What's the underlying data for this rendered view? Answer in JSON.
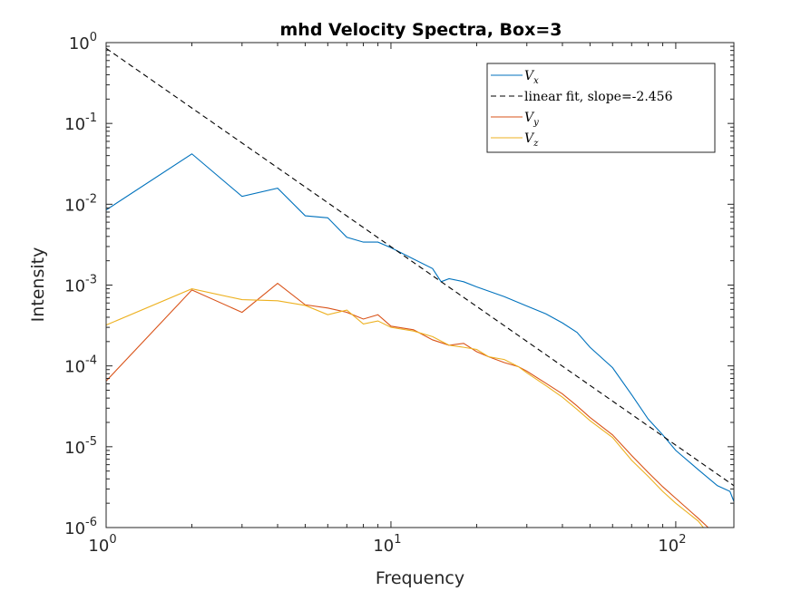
{
  "chart_data": {
    "type": "line",
    "title": "mhd Velocity Spectra, Box=3",
    "xlabel": "Frequency",
    "ylabel": "Intensity",
    "xscale": "log",
    "yscale": "log",
    "xlim": [
      1,
      160
    ],
    "ylim": [
      1e-06,
      1
    ],
    "xticks": [
      1,
      10,
      100
    ],
    "yticks": [
      1e-06,
      1e-05,
      0.0001,
      0.001,
      0.01,
      0.1,
      1
    ],
    "grid": false,
    "legend_position": "top-right",
    "series": [
      {
        "name": "Vx",
        "legend_label": {
          "base": "V",
          "sub": "x"
        },
        "color": "#0072BD",
        "style": "solid",
        "points": [
          [
            1,
            0.0085
          ],
          [
            2,
            0.042
          ],
          [
            3,
            0.0125
          ],
          [
            4,
            0.0158
          ],
          [
            5,
            0.0072
          ],
          [
            6,
            0.0068
          ],
          [
            7,
            0.0039
          ],
          [
            8,
            0.0034
          ],
          [
            9,
            0.0034
          ],
          [
            10,
            0.0029
          ],
          [
            12,
            0.0021
          ],
          [
            14,
            0.0016
          ],
          [
            15,
            0.0011
          ],
          [
            16,
            0.0012
          ],
          [
            18,
            0.0011
          ],
          [
            20,
            0.00095
          ],
          [
            25,
            0.00072
          ],
          [
            30,
            0.00055
          ],
          [
            35,
            0.00044
          ],
          [
            40,
            0.00034
          ],
          [
            45,
            0.00026
          ],
          [
            50,
            0.00017
          ],
          [
            60,
            9.5e-05
          ],
          [
            70,
            4.4e-05
          ],
          [
            80,
            2.2e-05
          ],
          [
            90,
            1.4e-05
          ],
          [
            100,
            9e-06
          ],
          [
            120,
            5.2e-06
          ],
          [
            140,
            3.3e-06
          ],
          [
            155,
            2.8e-06
          ],
          [
            160,
            2.1e-06
          ]
        ]
      },
      {
        "name": "linear fit, slope=-2.456",
        "legend_label": {
          "base": "linear fit, slope=-2.456",
          "sub": ""
        },
        "color": "#000000",
        "style": "dashed",
        "points": [
          [
            1,
            0.85
          ],
          [
            160,
            3.3e-06
          ]
        ]
      },
      {
        "name": "Vy",
        "legend_label": {
          "base": "V",
          "sub": "y"
        },
        "color": "#D95319",
        "style": "solid",
        "points": [
          [
            1,
            6.5e-05
          ],
          [
            2,
            0.00087
          ],
          [
            3,
            0.00046
          ],
          [
            4,
            0.00105
          ],
          [
            5,
            0.00057
          ],
          [
            6,
            0.00052
          ],
          [
            7,
            0.00046
          ],
          [
            8,
            0.00038
          ],
          [
            9,
            0.00043
          ],
          [
            10,
            0.00031
          ],
          [
            12,
            0.00028
          ],
          [
            14,
            0.00021
          ],
          [
            16,
            0.00018
          ],
          [
            18,
            0.00019
          ],
          [
            20,
            0.00015
          ],
          [
            22,
            0.00013
          ],
          [
            25,
            0.00011
          ],
          [
            28,
            9.8e-05
          ],
          [
            30,
            8.6e-05
          ],
          [
            35,
            6.1e-05
          ],
          [
            40,
            4.5e-05
          ],
          [
            45,
            3.2e-05
          ],
          [
            50,
            2.3e-05
          ],
          [
            60,
            1.4e-05
          ],
          [
            70,
            7.8e-06
          ],
          [
            80,
            4.8e-06
          ],
          [
            90,
            3.2e-06
          ],
          [
            100,
            2.3e-06
          ],
          [
            120,
            1.3e-06
          ],
          [
            130,
            1e-06
          ]
        ]
      },
      {
        "name": "Vz",
        "legend_label": {
          "base": "V",
          "sub": "z"
        },
        "color": "#EDB120",
        "style": "solid",
        "points": [
          [
            1,
            0.00032
          ],
          [
            2,
            0.0009
          ],
          [
            3,
            0.00066
          ],
          [
            4,
            0.00064
          ],
          [
            5,
            0.00056
          ],
          [
            6,
            0.00043
          ],
          [
            7,
            0.00049
          ],
          [
            8,
            0.00033
          ],
          [
            9,
            0.00036
          ],
          [
            10,
            0.0003
          ],
          [
            12,
            0.00027
          ],
          [
            14,
            0.00023
          ],
          [
            16,
            0.00018
          ],
          [
            18,
            0.00017
          ],
          [
            20,
            0.00016
          ],
          [
            22,
            0.00013
          ],
          [
            25,
            0.00012
          ],
          [
            28,
            9.8e-05
          ],
          [
            30,
            8.2e-05
          ],
          [
            35,
            5.7e-05
          ],
          [
            40,
            4.1e-05
          ],
          [
            45,
            2.9e-05
          ],
          [
            50,
            2.1e-05
          ],
          [
            60,
            1.3e-05
          ],
          [
            70,
            6.8e-06
          ],
          [
            80,
            4.3e-06
          ],
          [
            90,
            2.8e-06
          ],
          [
            100,
            2e-06
          ],
          [
            120,
            1.2e-06
          ],
          [
            125,
            1e-06
          ]
        ]
      }
    ]
  }
}
